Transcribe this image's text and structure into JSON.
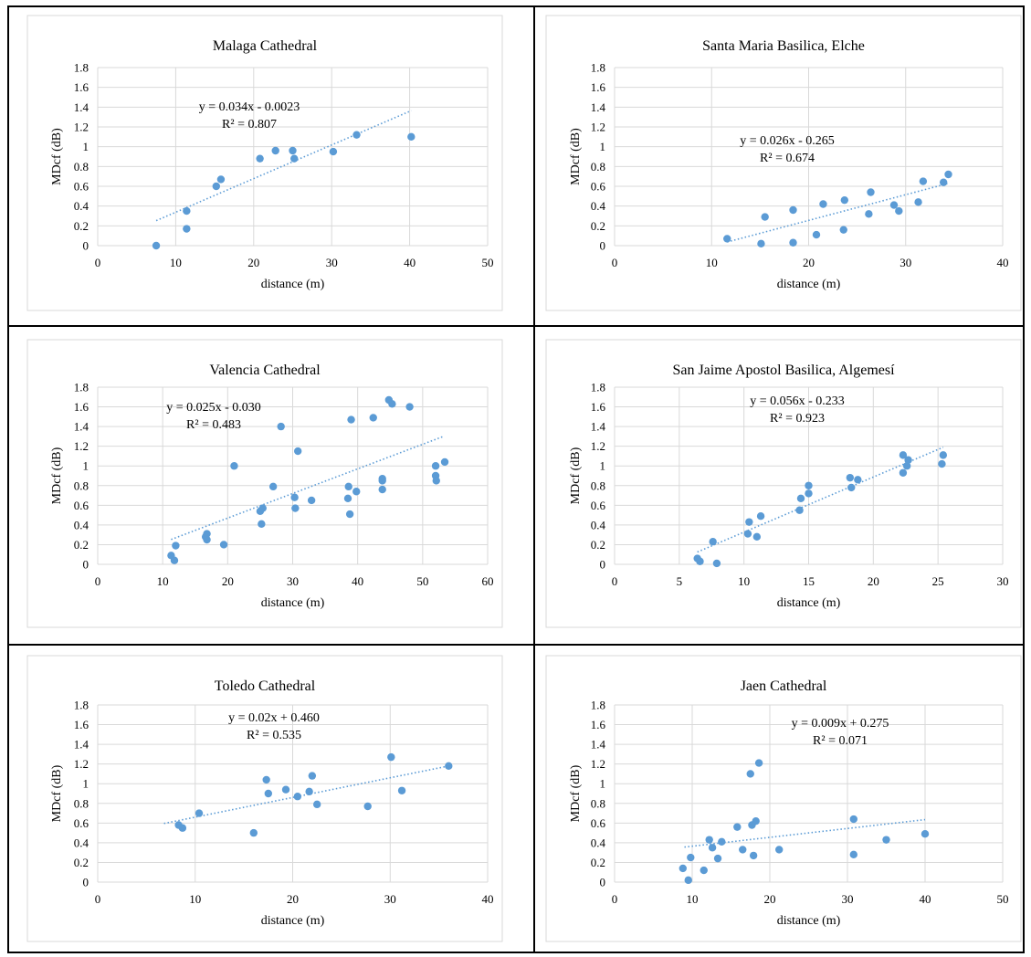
{
  "chart_data": [
    {
      "type": "scatter",
      "title": "Malaga Cathedral",
      "xlabel": "distance (m)",
      "ylabel": "MDcf (dB)",
      "xlim": [
        0,
        50
      ],
      "xticks": [
        0,
        10,
        20,
        30,
        40,
        50
      ],
      "ylim": [
        0,
        1.8
      ],
      "yticks": [
        "0",
        "0.2",
        "0.4",
        "0.6",
        "0.8",
        "1",
        "1.2",
        "1.4",
        "1.6",
        "1.8"
      ],
      "grid": true,
      "legend": "none",
      "color": "#5b9bd5",
      "trendline": {
        "slope": 0.034,
        "intercept": -0.0023,
        "x_range": [
          7.5,
          40.2
        ]
      },
      "equation": "y = 0.034x - 0.0023",
      "r2": "R² = 0.807",
      "points": [
        [
          7.5,
          0.0
        ],
        [
          11.4,
          0.17
        ],
        [
          11.4,
          0.35
        ],
        [
          15.2,
          0.6
        ],
        [
          15.8,
          0.67
        ],
        [
          20.8,
          0.88
        ],
        [
          22.8,
          0.96
        ],
        [
          25.0,
          0.96
        ],
        [
          25.2,
          0.88
        ],
        [
          30.2,
          0.95
        ],
        [
          33.2,
          1.12
        ],
        [
          40.2,
          1.1
        ]
      ]
    },
    {
      "type": "scatter",
      "title": "Santa Maria Basilica, Elche",
      "xlabel": "distance (m)",
      "ylabel": "MDcf (dB)",
      "xlim": [
        0,
        40
      ],
      "xticks": [
        0,
        10,
        20,
        30,
        40
      ],
      "ylim": [
        0,
        1.8
      ],
      "yticks": [
        "0",
        "0.2",
        "0.4",
        "0.6",
        "0.8",
        "1",
        "1.2",
        "1.4",
        "1.6",
        "1.8"
      ],
      "grid": true,
      "legend": "none",
      "color": "#5b9bd5",
      "trendline": {
        "slope": 0.026,
        "intercept": -0.265,
        "x_range": [
          11.6,
          34.4
        ]
      },
      "equation": "y = 0.026x - 0.265",
      "r2": "R² = 0.674",
      "points": [
        [
          11.6,
          0.07
        ],
        [
          15.1,
          0.02
        ],
        [
          15.5,
          0.29
        ],
        [
          18.4,
          0.36
        ],
        [
          18.4,
          0.03
        ],
        [
          20.8,
          0.11
        ],
        [
          21.5,
          0.42
        ],
        [
          23.6,
          0.16
        ],
        [
          23.7,
          0.46
        ],
        [
          26.2,
          0.32
        ],
        [
          26.4,
          0.54
        ],
        [
          28.8,
          0.41
        ],
        [
          29.3,
          0.35
        ],
        [
          31.3,
          0.44
        ],
        [
          31.8,
          0.65
        ],
        [
          33.9,
          0.64
        ],
        [
          34.4,
          0.72
        ]
      ]
    },
    {
      "type": "scatter",
      "title": "Valencia Cathedral",
      "xlabel": "distance (m)",
      "ylabel": "MDcf (dB)",
      "xlim": [
        0,
        60
      ],
      "xticks": [
        0,
        10,
        20,
        30,
        40,
        50,
        60
      ],
      "ylim": [
        0,
        1.8
      ],
      "yticks": [
        "0",
        "0.2",
        "0.4",
        "0.6",
        "0.8",
        "1",
        "1.2",
        "1.4",
        "1.6",
        "1.8"
      ],
      "grid": true,
      "legend": "none",
      "color": "#5b9bd5",
      "trendline": {
        "slope": 0.025,
        "intercept": -0.03,
        "x_range": [
          11.3,
          53.2
        ]
      },
      "equation": "y = 0.025x - 0.030",
      "r2": "R² = 0.483",
      "points": [
        [
          11.3,
          0.09
        ],
        [
          11.8,
          0.04
        ],
        [
          12.0,
          0.19
        ],
        [
          16.6,
          0.28
        ],
        [
          16.8,
          0.31
        ],
        [
          16.8,
          0.25
        ],
        [
          19.4,
          0.2
        ],
        [
          21.0,
          1.0
        ],
        [
          25.0,
          0.54
        ],
        [
          25.2,
          0.41
        ],
        [
          25.4,
          0.57
        ],
        [
          27.0,
          0.79
        ],
        [
          28.2,
          1.4
        ],
        [
          30.3,
          0.68
        ],
        [
          30.4,
          0.57
        ],
        [
          30.8,
          1.15
        ],
        [
          32.9,
          0.65
        ],
        [
          38.5,
          0.67
        ],
        [
          38.6,
          0.79
        ],
        [
          38.8,
          0.51
        ],
        [
          39.0,
          1.47
        ],
        [
          39.8,
          0.74
        ],
        [
          42.4,
          1.49
        ],
        [
          43.8,
          0.85
        ],
        [
          43.8,
          0.87
        ],
        [
          43.8,
          0.76
        ],
        [
          44.8,
          1.67
        ],
        [
          45.3,
          1.63
        ],
        [
          48.0,
          1.6
        ],
        [
          52.0,
          1.0
        ],
        [
          52.0,
          0.9
        ],
        [
          52.1,
          0.85
        ],
        [
          53.4,
          1.04
        ]
      ]
    },
    {
      "type": "scatter",
      "title": "San Jaime Apostol Basilica, Algemesí",
      "xlabel": "distance (m)",
      "ylabel": "MDcf (dB)",
      "xlim": [
        0,
        30
      ],
      "xticks": [
        0,
        5,
        10,
        15,
        20,
        25,
        30
      ],
      "ylim": [
        0,
        1.8
      ],
      "yticks": [
        "0",
        "0.2",
        "0.4",
        "0.6",
        "0.8",
        "1",
        "1.2",
        "1.4",
        "1.6",
        "1.8"
      ],
      "grid": true,
      "legend": "none",
      "color": "#5b9bd5",
      "trendline": {
        "slope": 0.056,
        "intercept": -0.233,
        "x_range": [
          6.4,
          25.4
        ]
      },
      "equation": "y = 0.056x - 0.233",
      "r2": "R² = 0.923",
      "points": [
        [
          6.4,
          0.06
        ],
        [
          6.6,
          0.03
        ],
        [
          7.6,
          0.23
        ],
        [
          7.9,
          0.01
        ],
        [
          10.3,
          0.31
        ],
        [
          10.4,
          0.43
        ],
        [
          11.0,
          0.28
        ],
        [
          11.3,
          0.49
        ],
        [
          14.3,
          0.55
        ],
        [
          14.4,
          0.67
        ],
        [
          15.0,
          0.72
        ],
        [
          15.0,
          0.8
        ],
        [
          18.2,
          0.88
        ],
        [
          18.3,
          0.78
        ],
        [
          18.8,
          0.86
        ],
        [
          22.3,
          1.11
        ],
        [
          22.3,
          0.93
        ],
        [
          22.6,
          1.0
        ],
        [
          22.7,
          1.06
        ],
        [
          25.3,
          1.02
        ],
        [
          25.4,
          1.11
        ]
      ]
    },
    {
      "type": "scatter",
      "title": "Toledo Cathedral",
      "xlabel": "distance (m)",
      "ylabel": "MDcf (dB)",
      "xlim": [
        0,
        40
      ],
      "xticks": [
        0,
        10,
        20,
        30,
        40
      ],
      "ylim": [
        0,
        1.8
      ],
      "yticks": [
        "0",
        "0.2",
        "0.4",
        "0.6",
        "0.8",
        "1",
        "1.2",
        "1.4",
        "1.6",
        "1.8"
      ],
      "grid": true,
      "legend": "none",
      "color": "#5b9bd5",
      "trendline": {
        "slope": 0.02,
        "intercept": 0.46,
        "x_range": [
          6.8,
          36.0
        ]
      },
      "equation": "y = 0.02x + 0.460",
      "r2": "R² = 0.535",
      "points": [
        [
          8.3,
          0.58
        ],
        [
          8.7,
          0.55
        ],
        [
          10.4,
          0.7
        ],
        [
          16.0,
          0.5
        ],
        [
          17.3,
          1.04
        ],
        [
          17.5,
          0.9
        ],
        [
          19.3,
          0.94
        ],
        [
          20.5,
          0.87
        ],
        [
          21.7,
          0.92
        ],
        [
          22.0,
          1.08
        ],
        [
          22.5,
          0.79
        ],
        [
          27.7,
          0.77
        ],
        [
          30.1,
          1.27
        ],
        [
          31.2,
          0.93
        ],
        [
          36.0,
          1.18
        ]
      ]
    },
    {
      "type": "scatter",
      "title": "Jaen Cathedral",
      "xlabel": "distance (m)",
      "ylabel": "MDcf (dB)",
      "xlim": [
        0,
        50
      ],
      "xticks": [
        0,
        10,
        20,
        30,
        40,
        50
      ],
      "ylim": [
        0,
        1.8
      ],
      "yticks": [
        "0",
        "0.2",
        "0.4",
        "0.6",
        "0.8",
        "1",
        "1.2",
        "1.4",
        "1.6",
        "1.8"
      ],
      "grid": true,
      "legend": "none",
      "color": "#5b9bd5",
      "trendline": {
        "slope": 0.009,
        "intercept": 0.275,
        "x_range": [
          9.0,
          40.0
        ]
      },
      "equation": "y = 0.009x + 0.275",
      "r2": "R² = 0.071",
      "points": [
        [
          8.8,
          0.14
        ],
        [
          9.5,
          0.02
        ],
        [
          9.8,
          0.25
        ],
        [
          11.5,
          0.12
        ],
        [
          12.2,
          0.43
        ],
        [
          12.6,
          0.35
        ],
        [
          13.3,
          0.24
        ],
        [
          13.8,
          0.41
        ],
        [
          15.8,
          0.56
        ],
        [
          16.5,
          0.33
        ],
        [
          17.5,
          1.1
        ],
        [
          17.7,
          0.58
        ],
        [
          17.9,
          0.27
        ],
        [
          18.2,
          0.62
        ],
        [
          18.6,
          1.21
        ],
        [
          21.2,
          0.33
        ],
        [
          30.8,
          0.64
        ],
        [
          30.8,
          0.28
        ],
        [
          35.0,
          0.43
        ],
        [
          40.0,
          0.49
        ]
      ]
    }
  ]
}
